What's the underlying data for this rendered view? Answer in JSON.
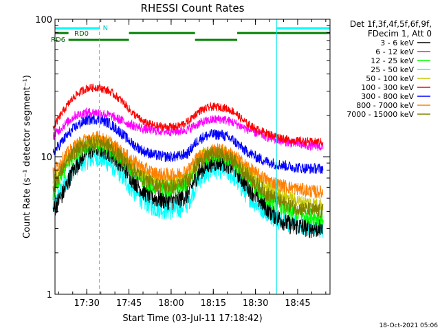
{
  "chart_data": {
    "type": "line",
    "title": "RHESSI Count Rates",
    "xlabel": "Start Time (03-Jul-11 17:18:42)",
    "ylabel": "Count Rate (s⁻¹ detector segment⁻¹)",
    "yscale": "log",
    "ylim": [
      1,
      100
    ],
    "xlim": [
      "17:18:42",
      "18:56:30"
    ],
    "grid": false,
    "legend_placement": "right",
    "x_ticks": [
      "17:30",
      "17:45",
      "18:00",
      "18:15",
      "18:30",
      "18:45"
    ],
    "y_ticks": [
      "1",
      "10",
      "100"
    ],
    "legend_header": [
      "Det 1f,3f,4f,5f,6f,9f,",
      "FDecim 1, Att 0"
    ],
    "x": [
      "17:18",
      "17:22",
      "17:26",
      "17:30",
      "17:34",
      "17:38",
      "17:42",
      "17:46",
      "17:50",
      "17:54",
      "17:58",
      "18:02",
      "18:06",
      "18:10",
      "18:14",
      "18:18",
      "18:22",
      "18:26",
      "18:30",
      "18:34",
      "18:38",
      "18:42",
      "18:46",
      "18:50",
      "18:54"
    ],
    "series": [
      {
        "name": "3 - 6 keV",
        "color": "#000000",
        "values": [
          4.0,
          5.6,
          8.5,
          11.0,
          11.6,
          10.8,
          9.0,
          7.0,
          5.6,
          5.0,
          4.8,
          4.8,
          5.3,
          7.8,
          9.0,
          9.2,
          8.5,
          6.5,
          5.2,
          4.2,
          3.6,
          3.2,
          3.1,
          3.0,
          3.0
        ]
      },
      {
        "name": "6 - 12 keV",
        "color": "#ff00ff",
        "values": [
          14.0,
          17.0,
          20.0,
          21.0,
          21.0,
          20.0,
          18.5,
          17.0,
          16.0,
          15.5,
          15.3,
          15.3,
          15.8,
          17.5,
          18.5,
          18.8,
          17.8,
          16.2,
          15.0,
          14.0,
          13.2,
          12.7,
          12.3,
          12.0,
          11.8
        ]
      },
      {
        "name": "12 - 25 keV",
        "color": "#00ff00",
        "values": [
          5.5,
          8.0,
          10.5,
          12.0,
          12.5,
          11.5,
          9.8,
          8.0,
          6.8,
          6.0,
          5.8,
          5.8,
          6.4,
          9.0,
          10.2,
          10.2,
          9.2,
          7.4,
          6.0,
          5.0,
          4.5,
          4.0,
          3.8,
          3.7,
          3.6
        ]
      },
      {
        "name": "25 - 50 keV",
        "color": "#00ffff",
        "values": [
          4.2,
          6.2,
          8.5,
          9.5,
          10.0,
          9.0,
          7.5,
          5.8,
          4.8,
          4.3,
          4.1,
          4.1,
          4.6,
          6.8,
          8.0,
          8.2,
          7.3,
          5.6,
          4.6,
          4.0,
          3.5,
          3.3,
          3.2,
          3.1,
          3.0
        ]
      },
      {
        "name": "50 - 100 keV",
        "color": "#c8c800",
        "values": [
          6.5,
          9.0,
          11.5,
          12.8,
          13.3,
          12.2,
          10.3,
          8.8,
          7.6,
          6.9,
          6.7,
          6.7,
          7.3,
          9.8,
          10.8,
          10.8,
          9.8,
          8.2,
          6.9,
          6.0,
          5.4,
          5.0,
          4.7,
          4.6,
          4.5
        ]
      },
      {
        "name": "100 - 300 keV",
        "color": "#ff0000",
        "values": [
          16.0,
          22.0,
          28.0,
          31.5,
          32.0,
          30.0,
          26.0,
          21.0,
          18.0,
          16.8,
          16.5,
          16.5,
          18.0,
          21.5,
          23.0,
          23.0,
          21.5,
          18.0,
          16.0,
          14.8,
          14.0,
          13.2,
          13.0,
          12.8,
          12.8
        ]
      },
      {
        "name": "300 - 800 keV",
        "color": "#0000ff",
        "values": [
          10.5,
          13.5,
          16.5,
          18.5,
          19.0,
          17.5,
          15.0,
          12.5,
          11.0,
          10.3,
          10.0,
          10.0,
          10.6,
          13.5,
          14.5,
          14.5,
          13.2,
          11.2,
          10.0,
          9.2,
          8.8,
          8.5,
          8.3,
          8.2,
          8.2
        ]
      },
      {
        "name": "800 - 7000 keV",
        "color": "#ff8000",
        "values": [
          7.5,
          10.0,
          12.0,
          13.5,
          13.8,
          12.8,
          11.0,
          9.5,
          8.3,
          7.6,
          7.4,
          7.4,
          8.0,
          10.2,
          11.2,
          11.2,
          10.3,
          8.8,
          7.6,
          6.8,
          6.3,
          6.0,
          5.8,
          5.6,
          5.5
        ]
      },
      {
        "name": "7000 - 15000 keV",
        "color": "#808000",
        "values": [
          6.0,
          8.5,
          11.0,
          12.5,
          13.0,
          12.0,
          10.0,
          8.2,
          7.0,
          6.3,
          6.1,
          6.1,
          6.7,
          9.2,
          10.4,
          10.4,
          9.4,
          7.7,
          6.4,
          5.4,
          4.8,
          4.4,
          4.2,
          4.1,
          4.0
        ]
      }
    ],
    "annotations": {
      "flag_labels": [
        "N",
        "RD0",
        "RD6"
      ],
      "night_bars": [
        [
          "17:18:42",
          "17:34:30"
        ],
        [
          "18:37:30",
          "18:56:30"
        ]
      ],
      "rd0_bars": [
        [
          "17:18:42",
          "17:23:30"
        ],
        [
          "17:45:00",
          "18:08:30"
        ],
        [
          "18:23:30",
          "18:56:30"
        ]
      ],
      "rd6_bars": [
        [
          "17:23:30",
          "17:45:00"
        ],
        [
          "18:08:30",
          "18:23:30"
        ]
      ],
      "solid_vertical_lines": [
        "17:18:42",
        "18:37:30"
      ],
      "dashed_vertical_lines": [
        "17:34:30",
        "18:56:30"
      ]
    },
    "timestamp": "18-Oct-2021 05:06"
  }
}
